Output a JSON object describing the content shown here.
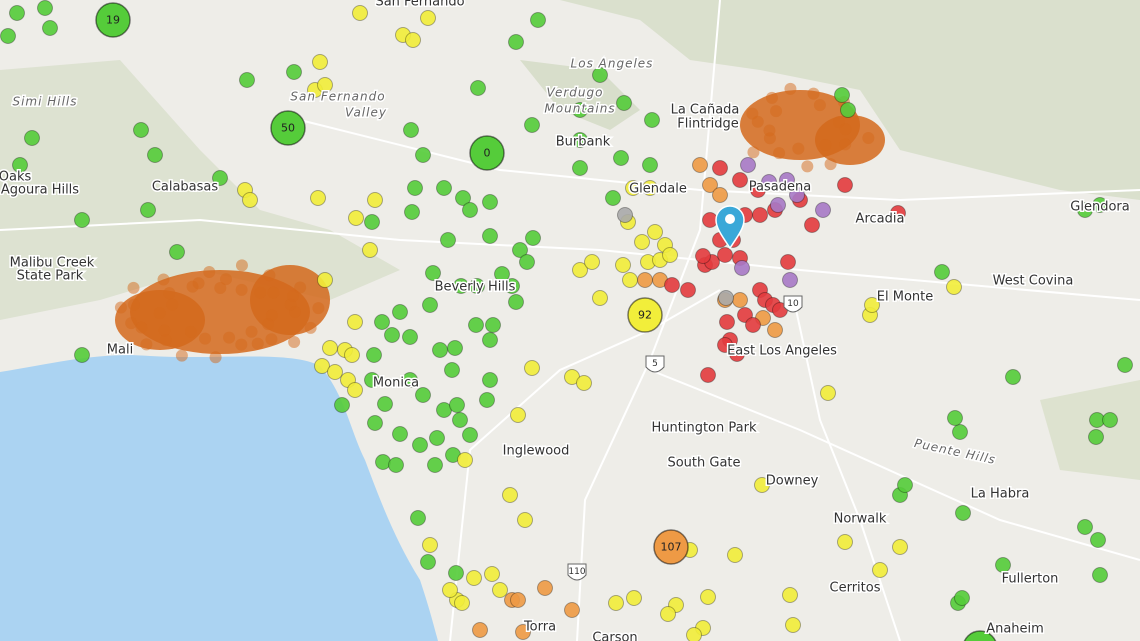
{
  "places": [
    "San Fernando",
    "Los Angeles",
    "Simi Hills",
    "San Fernando",
    "Valley",
    "Verdugo",
    "Mountains",
    "Burbank",
    "La Cañada",
    "Flintridge",
    "Glendale",
    "Pasadena",
    "Arcadia",
    "Glendora",
    "Oaks",
    "Agoura Hills",
    "Calabasas",
    "Malibu Creek",
    "State Park",
    "Beverly Hills",
    "West Covina",
    "El Monte",
    "Mali",
    "Monica",
    "East Los Angeles",
    "Inglewood",
    "Huntington Park",
    "South Gate",
    "Downey",
    "Norwalk",
    "La Habra",
    "Fullerton",
    "Anaheim",
    "Cerritos",
    "Torra",
    "Carson",
    "Puente Hills"
  ],
  "clusters": [
    19,
    50,
    0,
    92,
    107
  ],
  "highways": [
    "5",
    "10",
    "110"
  ]
}
